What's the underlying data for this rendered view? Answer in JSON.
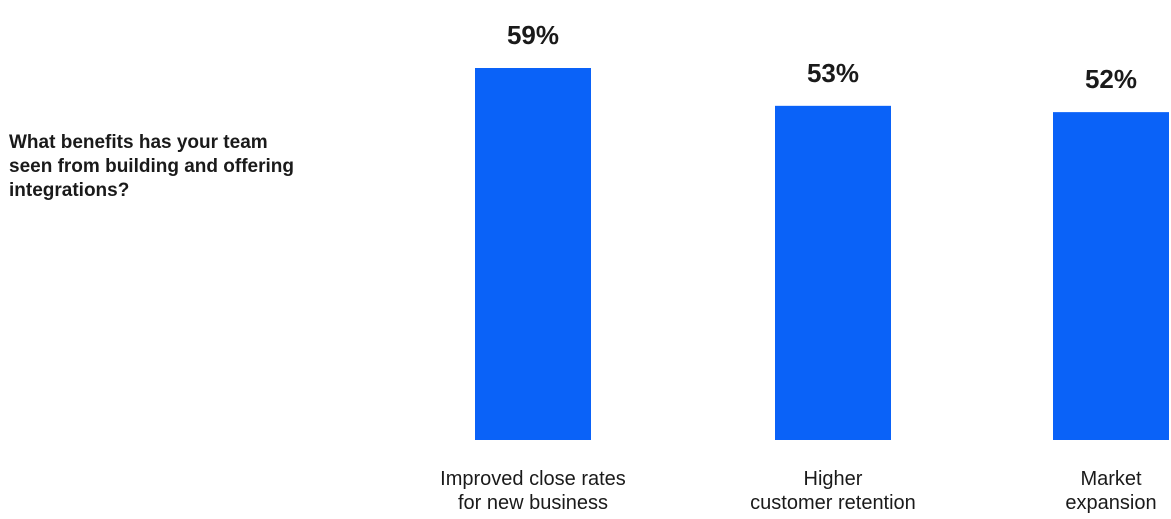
{
  "question": "What benefits has your team seen from building and offering integrations?",
  "chart_data": {
    "type": "bar",
    "categories": [
      [
        "Improved close rates",
        "for new business"
      ],
      [
        "Higher",
        "customer retention"
      ],
      [
        "Market",
        "expansion"
      ]
    ],
    "values": [
      59,
      53,
      52
    ],
    "value_labels": [
      "59%",
      "53%",
      "52%"
    ],
    "ylim": [
      0,
      59
    ],
    "bar_color": "#0a62f8",
    "grid": false,
    "legend": "none"
  }
}
